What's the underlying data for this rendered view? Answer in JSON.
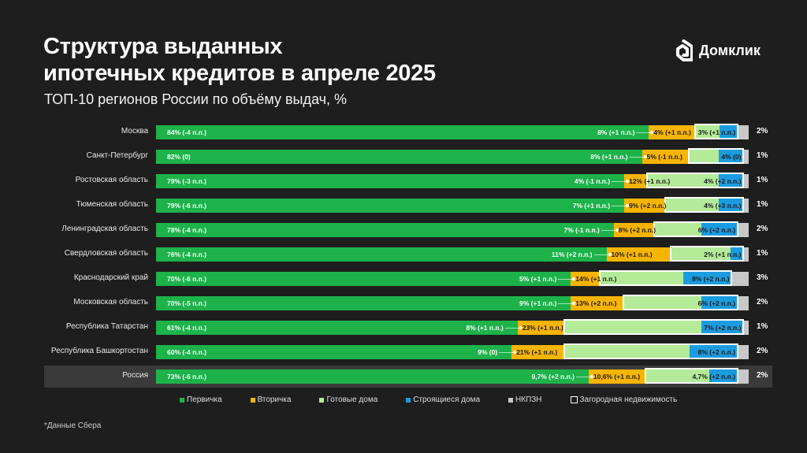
{
  "header": {
    "title_line1": "Структура выданных",
    "title_line2": "ипотечных кредитов в апреле 2025",
    "subtitle": "ТОП-10 регионов России по объёму выдач, %",
    "logo_text": "Домклик"
  },
  "colors": {
    "primary": "#1db34a",
    "secondary": "#f8b500",
    "ready": "#b4eb98",
    "building": "#1b9ce0",
    "nkpzn": "#c8c8c8",
    "country_box": "#ffffff",
    "background": "#1e1e1e"
  },
  "chart_data": {
    "type": "bar",
    "orientation": "horizontal-stacked",
    "xlim": [
      0,
      100
    ],
    "series_names": [
      "Первичка",
      "Вторичка",
      "Готовые дома",
      "Строящиеся дома",
      "НКПЗН"
    ],
    "rows": [
      {
        "region": "Москва",
        "values": [
          84,
          8,
          4,
          3,
          2
        ],
        "labels": [
          "84% (-4 п.п.)",
          "8% (+1 п.п.)",
          "4% (+1 п.п.)",
          "3% (+1 п.п.)",
          "2%"
        ]
      },
      {
        "region": "Санкт-Петербург",
        "values": [
          82,
          8,
          5,
          4,
          1
        ],
        "labels": [
          "82% (0)",
          "8% (+1 п.п.)",
          "5% (-1 п.п.)",
          "4% (0)",
          "1%"
        ]
      },
      {
        "region": "Ростовская область",
        "values": [
          79,
          4,
          12,
          4,
          1
        ],
        "labels": [
          "79% (-3 п.п.)",
          "4% (-1 п.п.)",
          "12% (+1 п.п.)",
          "4% (+2 п.п.)",
          "1%"
        ]
      },
      {
        "region": "Тюменская область",
        "values": [
          79,
          7,
          9,
          4,
          1
        ],
        "labels": [
          "79% (-6 п.п.)",
          "7% (+1 п.п.)",
          "9% (+2 п.п.)",
          "4% (+3 п.п.)",
          "1%"
        ]
      },
      {
        "region": "Ленинградская область",
        "values": [
          78,
          7,
          8,
          6,
          2
        ],
        "labels": [
          "78% (-4 п.п.)",
          "7% (-1 п.п.)",
          "8% (+2 п.п.)",
          "6% (+2 п.п.)",
          "2%"
        ]
      },
      {
        "region": "Свердловская область",
        "values": [
          76,
          11,
          10,
          2,
          1
        ],
        "labels": [
          "76% (-4 п.п.)",
          "11% (+2 п.п.)",
          "10% (+1 п.п.)",
          "2% (+1 п.п.)",
          "1%"
        ]
      },
      {
        "region": "Краснодарский край",
        "values": [
          70,
          5,
          14,
          8,
          3
        ],
        "labels": [
          "70% (-6 п.п.)",
          "5% (+1 п.п.)",
          "14% (+1 п.п.)",
          "8% (+2 п.п.)",
          "3%"
        ]
      },
      {
        "region": "Московская область",
        "values": [
          70,
          9,
          13,
          6,
          2
        ],
        "labels": [
          "70% (-5 п.п.)",
          "9% (+1 п.п.)",
          "13% (+2 п.п.)",
          "6% (+2 п.п.)",
          "2%"
        ]
      },
      {
        "region": "Республика Татарстан",
        "values": [
          61,
          8,
          23,
          7,
          1
        ],
        "labels": [
          "61% (-4 п.п.)",
          "8% (+1 п.п.)",
          "23% (+1 п.п.)",
          "7% (+2 п.п.)",
          "1%"
        ]
      },
      {
        "region": "Республика Башкортостан",
        "values": [
          60,
          9,
          21,
          8,
          2
        ],
        "labels": [
          "60% (-4 п.п.)",
          "9% (0)",
          "21% (+1 п.п.)",
          "8% (+2 п.п.)",
          "2%"
        ]
      },
      {
        "region": "Россия",
        "values": [
          73,
          9.7,
          10.6,
          4.7,
          2
        ],
        "labels": [
          "73% (-6 п.п.)",
          "9,7% (+2 п.п.)",
          "10,6% (+1 п.п.)",
          "4,7% (+2 п.п.)",
          "2%"
        ],
        "highlight": true
      }
    ],
    "outline_series": "Загородная недвижимость"
  },
  "legend": [
    {
      "label": "Первичка",
      "color": "#1db34a",
      "type": "fill"
    },
    {
      "label": "Вторичка",
      "color": "#f8b500",
      "type": "fill"
    },
    {
      "label": "Готовые дома",
      "color": "#b4eb98",
      "type": "fill"
    },
    {
      "label": "Строящиеся дома",
      "color": "#1b9ce0",
      "type": "fill"
    },
    {
      "label": "НКПЗН",
      "color": "#c8c8c8",
      "type": "fill"
    },
    {
      "label": "Загородная недвижимость",
      "color": "#ffffff",
      "type": "outline"
    }
  ],
  "footnote": "*Данные Сбера"
}
